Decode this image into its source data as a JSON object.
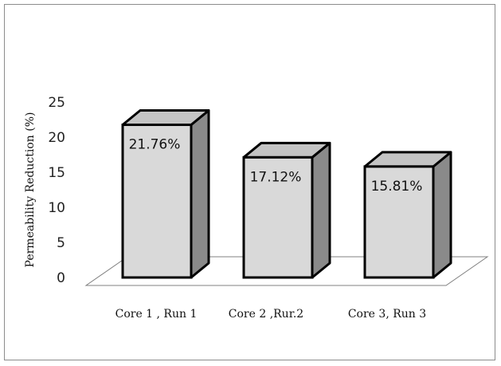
{
  "chart_data": {
    "type": "bar",
    "title": "",
    "xlabel": "",
    "ylabel": "Permeability Reduction (%)",
    "categories": [
      "Core 1 , Run 1",
      "Core 2 ,Rur.2",
      "Core 3, Run 3"
    ],
    "values": [
      21.76,
      17.12,
      15.81
    ],
    "data_labels": [
      "21.76%",
      "17.12%",
      "15.81%"
    ],
    "ylim": [
      0,
      25
    ],
    "yticks": [
      "0",
      "5",
      "10",
      "15",
      "20",
      "25"
    ],
    "grid": false,
    "legend": "none",
    "style": "3d-column",
    "colors": {
      "front": "#d9d9d9",
      "side": "#8a8a8a",
      "top": "#c4c4c4",
      "stroke": "#000000",
      "floor": "#808080"
    }
  }
}
